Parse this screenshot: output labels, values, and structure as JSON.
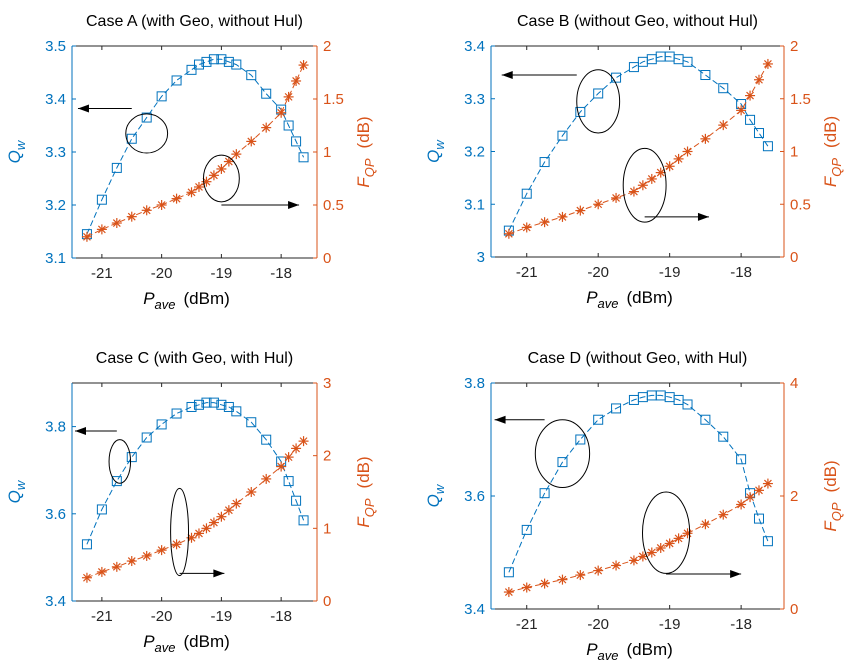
{
  "colors": {
    "left_axis": "#0072BD",
    "right_axis": "#D95319",
    "axis_box": "#262626",
    "annotation": "#000000"
  },
  "chart_data": [
    {
      "type": "line",
      "title": "Case A (with Geo, without Hul)",
      "xlabel_main": "P",
      "xlabel_sub": "ave",
      "xlabel_unit": "(dBm)",
      "ylabel_left_main": "Q",
      "ylabel_left_sub": "w",
      "ylabel_right_main": "F",
      "ylabel_right_sub": "QP",
      "ylabel_right_unit": "(dB)",
      "xlim": [
        -21.5,
        -17.4
      ],
      "ylim_left": [
        3.1,
        3.5
      ],
      "ylim_right": [
        0,
        2
      ],
      "xticks": [
        -21,
        -20,
        -19,
        -18
      ],
      "yticks_left": [
        3.1,
        3.2,
        3.3,
        3.4,
        3.5
      ],
      "yticks_right": [
        0,
        0.5,
        1,
        1.5,
        2
      ],
      "x": [
        -21.25,
        -21.0,
        -20.75,
        -20.5,
        -20.25,
        -20.0,
        -19.75,
        -19.5,
        -19.375,
        -19.25,
        -19.125,
        -19.0,
        -18.875,
        -18.75,
        -18.5,
        -18.25,
        -18.0,
        -17.875,
        -17.75,
        -17.625
      ],
      "series": [
        {
          "axis": "left",
          "marker": "square",
          "values": [
            3.145,
            3.21,
            3.27,
            3.325,
            3.365,
            3.405,
            3.435,
            3.455,
            3.465,
            3.47,
            3.475,
            3.475,
            3.47,
            3.465,
            3.445,
            3.41,
            3.38,
            3.35,
            3.32,
            3.29
          ]
        },
        {
          "axis": "right",
          "marker": "asterisk",
          "values": [
            0.2,
            0.27,
            0.33,
            0.39,
            0.45,
            0.5,
            0.56,
            0.62,
            0.67,
            0.72,
            0.78,
            0.84,
            0.91,
            0.98,
            1.1,
            1.23,
            1.37,
            1.52,
            1.67,
            1.82
          ]
        }
      ],
      "annotations": [
        {
          "type": "ellipse",
          "cx": -20.25,
          "cy": 3.335,
          "rx": 0.35,
          "ry": 0.037,
          "axis": "left"
        },
        {
          "type": "arrow",
          "x1": -20.5,
          "y1": 3.382,
          "x2": -21.4,
          "y2": 3.382,
          "axis": "left"
        },
        {
          "type": "ellipse",
          "cx": -19.0,
          "cy": 0.75,
          "rx": 0.3,
          "ry": 0.22,
          "axis": "right"
        },
        {
          "type": "arrow",
          "x1": -19.0,
          "y1": 0.5,
          "x2": -17.7,
          "y2": 0.5,
          "axis": "right"
        }
      ]
    },
    {
      "type": "line",
      "title": "Case B (without Geo, without Hul)",
      "xlabel_main": "P",
      "xlabel_sub": "ave",
      "xlabel_unit": "(dBm)",
      "ylabel_left_main": "Q",
      "ylabel_left_sub": "w",
      "ylabel_right_main": "F",
      "ylabel_right_sub": "QP",
      "ylabel_right_unit": "(dB)",
      "xlim": [
        -21.5,
        -17.4
      ],
      "ylim_left": [
        3.0,
        3.4
      ],
      "ylim_right": [
        0,
        2
      ],
      "xticks": [
        -21,
        -20,
        -19,
        -18
      ],
      "yticks_left": [
        3,
        3.1,
        3.2,
        3.3,
        3.4
      ],
      "yticks_right": [
        0,
        0.5,
        1,
        1.5,
        2
      ],
      "x": [
        -21.25,
        -21.0,
        -20.75,
        -20.5,
        -20.25,
        -20.0,
        -19.75,
        -19.5,
        -19.375,
        -19.25,
        -19.125,
        -19.0,
        -18.875,
        -18.75,
        -18.5,
        -18.25,
        -18.0,
        -17.875,
        -17.75,
        -17.625
      ],
      "series": [
        {
          "axis": "left",
          "marker": "square",
          "values": [
            3.05,
            3.12,
            3.18,
            3.23,
            3.275,
            3.31,
            3.34,
            3.36,
            3.37,
            3.375,
            3.38,
            3.38,
            3.375,
            3.37,
            3.345,
            3.32,
            3.29,
            3.26,
            3.235,
            3.21
          ]
        },
        {
          "axis": "right",
          "marker": "asterisk",
          "values": [
            0.22,
            0.28,
            0.33,
            0.38,
            0.44,
            0.5,
            0.56,
            0.62,
            0.68,
            0.74,
            0.8,
            0.86,
            0.93,
            1.0,
            1.12,
            1.25,
            1.39,
            1.53,
            1.68,
            1.83
          ]
        }
      ],
      "annotations": [
        {
          "type": "ellipse",
          "cx": -20.0,
          "cy": 3.295,
          "rx": 0.3,
          "ry": 0.06,
          "axis": "left"
        },
        {
          "type": "arrow",
          "x1": -20.3,
          "y1": 3.345,
          "x2": -21.35,
          "y2": 3.345,
          "axis": "left"
        },
        {
          "type": "ellipse",
          "cx": -19.35,
          "cy": 0.68,
          "rx": 0.3,
          "ry": 0.35,
          "axis": "right"
        },
        {
          "type": "arrow",
          "x1": -19.35,
          "y1": 0.38,
          "x2": -18.45,
          "y2": 0.38,
          "axis": "right"
        }
      ]
    },
    {
      "type": "line",
      "title": "Case C (with Geo, with Hul)",
      "xlabel_main": "P",
      "xlabel_sub": "ave",
      "xlabel_unit": "(dBm)",
      "ylabel_left_main": "Q",
      "ylabel_left_sub": "w",
      "ylabel_right_main": "F",
      "ylabel_right_sub": "QP",
      "ylabel_right_unit": "(dB)",
      "xlim": [
        -21.5,
        -17.4
      ],
      "ylim_left": [
        3.4,
        3.9
      ],
      "ylim_right": [
        0,
        3
      ],
      "xticks": [
        -21,
        -20,
        -19,
        -18
      ],
      "yticks_left": [
        3.4,
        3.6,
        3.8
      ],
      "yticks_right": [
        0,
        1,
        2,
        3
      ],
      "x": [
        -21.25,
        -21.0,
        -20.75,
        -20.5,
        -20.25,
        -20.0,
        -19.75,
        -19.5,
        -19.375,
        -19.25,
        -19.125,
        -19.0,
        -18.875,
        -18.75,
        -18.5,
        -18.25,
        -18.0,
        -17.875,
        -17.75,
        -17.625
      ],
      "series": [
        {
          "axis": "left",
          "marker": "square",
          "values": [
            3.53,
            3.61,
            3.675,
            3.73,
            3.775,
            3.805,
            3.83,
            3.845,
            3.85,
            3.855,
            3.855,
            3.85,
            3.845,
            3.835,
            3.81,
            3.77,
            3.72,
            3.675,
            3.63,
            3.585
          ]
        },
        {
          "axis": "right",
          "marker": "asterisk",
          "values": [
            0.32,
            0.4,
            0.47,
            0.55,
            0.62,
            0.7,
            0.78,
            0.87,
            0.93,
            1.0,
            1.08,
            1.16,
            1.25,
            1.34,
            1.5,
            1.68,
            1.85,
            1.98,
            2.1,
            2.2
          ]
        }
      ],
      "annotations": [
        {
          "type": "ellipse",
          "cx": -20.7,
          "cy": 3.72,
          "rx": 0.18,
          "ry": 0.05,
          "axis": "left"
        },
        {
          "type": "arrow",
          "x1": -20.75,
          "y1": 3.79,
          "x2": -21.45,
          "y2": 3.79,
          "axis": "left"
        },
        {
          "type": "ellipse",
          "cx": -19.7,
          "cy": 0.95,
          "rx": 0.15,
          "ry": 0.6,
          "axis": "right"
        },
        {
          "type": "arrow",
          "x1": -19.7,
          "y1": 0.38,
          "x2": -18.95,
          "y2": 0.38,
          "axis": "right"
        }
      ]
    },
    {
      "type": "line",
      "title": "Case D (without Geo, with Hul)",
      "xlabel_main": "P",
      "xlabel_sub": "ave",
      "xlabel_unit": "(dBm)",
      "ylabel_left_main": "Q",
      "ylabel_left_sub": "w",
      "ylabel_right_main": "F",
      "ylabel_right_sub": "QP",
      "ylabel_right_unit": "(dB)",
      "xlim": [
        -21.5,
        -17.4
      ],
      "ylim_left": [
        3.4,
        3.8
      ],
      "ylim_right": [
        0,
        4
      ],
      "xticks": [
        -21,
        -20,
        -19,
        -18
      ],
      "yticks_left": [
        3.4,
        3.6,
        3.8
      ],
      "yticks_right": [
        0,
        2,
        4
      ],
      "x": [
        -21.25,
        -21.0,
        -20.75,
        -20.5,
        -20.25,
        -20.0,
        -19.75,
        -19.5,
        -19.375,
        -19.25,
        -19.125,
        -19.0,
        -18.875,
        -18.75,
        -18.5,
        -18.25,
        -18.0,
        -17.875,
        -17.75,
        -17.625
      ],
      "series": [
        {
          "axis": "left",
          "marker": "square",
          "values": [
            3.465,
            3.54,
            3.605,
            3.66,
            3.7,
            3.735,
            3.755,
            3.77,
            3.775,
            3.778,
            3.778,
            3.775,
            3.77,
            3.762,
            3.735,
            3.705,
            3.665,
            3.605,
            3.56,
            3.52
          ]
        },
        {
          "axis": "right",
          "marker": "asterisk",
          "values": [
            0.3,
            0.38,
            0.45,
            0.52,
            0.6,
            0.68,
            0.77,
            0.86,
            0.93,
            1.0,
            1.08,
            1.16,
            1.25,
            1.34,
            1.5,
            1.67,
            1.85,
            1.98,
            2.1,
            2.22
          ]
        }
      ],
      "annotations": [
        {
          "type": "ellipse",
          "cx": -20.5,
          "cy": 3.675,
          "rx": 0.38,
          "ry": 0.06,
          "axis": "left"
        },
        {
          "type": "arrow",
          "x1": -20.75,
          "y1": 3.735,
          "x2": -21.45,
          "y2": 3.735,
          "axis": "left"
        },
        {
          "type": "ellipse",
          "cx": -19.05,
          "cy": 1.35,
          "rx": 0.33,
          "ry": 0.72,
          "axis": "right"
        },
        {
          "type": "arrow",
          "x1": -19.05,
          "y1": 0.62,
          "x2": -18.0,
          "y2": 0.62,
          "axis": "right"
        }
      ]
    }
  ]
}
